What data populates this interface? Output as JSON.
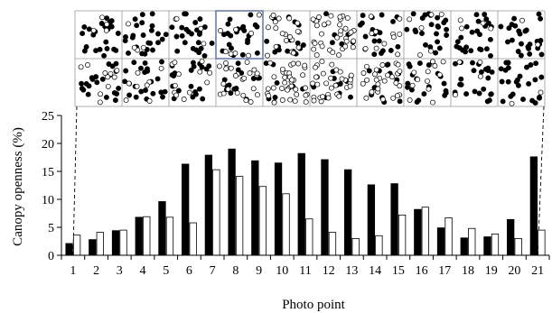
{
  "chart_data": {
    "type": "bar",
    "ylabel": "Canopy openness (%)",
    "xlabel": "Photo point",
    "ylim": [
      0,
      25
    ],
    "yticks": [
      0,
      5,
      10,
      15,
      20,
      25
    ],
    "grid": false,
    "categories": [
      "1",
      "2",
      "3",
      "4",
      "5",
      "6",
      "7",
      "8",
      "9",
      "10",
      "11",
      "12",
      "13",
      "14",
      "15",
      "16",
      "17",
      "18",
      "19",
      "20",
      "21"
    ],
    "series": [
      {
        "fill": "#000000",
        "values": [
          2.1,
          2.8,
          4.4,
          6.8,
          9.6,
          16.3,
          17.9,
          19.0,
          16.9,
          16.5,
          18.2,
          17.1,
          15.3,
          12.6,
          12.8,
          8.2,
          4.9,
          3.1,
          3.3,
          6.4,
          17.6
        ]
      },
      {
        "fill": "#ffffff",
        "values": [
          3.6,
          4.1,
          4.5,
          6.9,
          6.8,
          5.8,
          15.3,
          14.1,
          12.3,
          11.0,
          6.5,
          4.1,
          3.0,
          3.5,
          7.2,
          8.6,
          6.7,
          4.8,
          3.8,
          3.0,
          4.5
        ]
      }
    ],
    "annotations": [
      "Dashed connector lines link the map panel edges to photo points 1 and 21"
    ]
  },
  "map_panel": {
    "description": "Plot map of tree positions (filled and open circles) in a 10 x 2 grid of quadrats",
    "columns": 10,
    "rows": 2,
    "highlighted_cell": {
      "column": 3,
      "row": 0
    },
    "colors": {
      "grid": "#999999",
      "highlight": "#6b7fa8",
      "filled": "#000000",
      "open": "#ffffff"
    }
  }
}
